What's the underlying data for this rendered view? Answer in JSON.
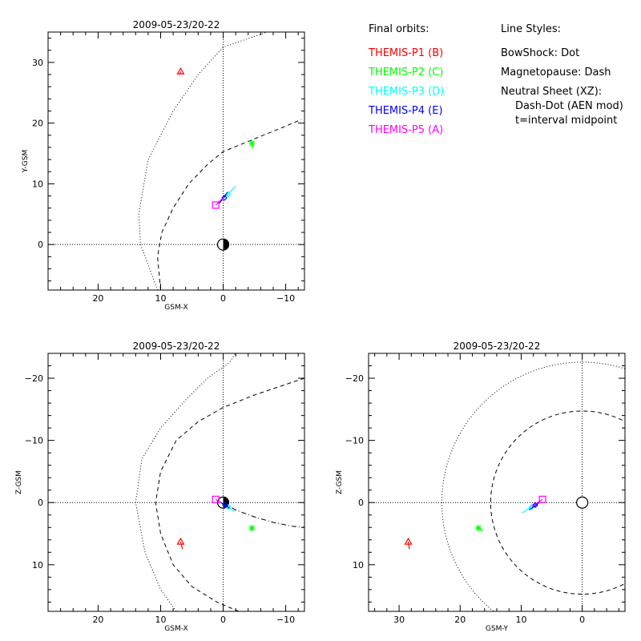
{
  "colors": {
    "P1": "#ff0000",
    "P2": "#00ff00",
    "P3": "#00ffff",
    "P4": "#0000ff",
    "P5": "#ff00ff"
  },
  "legend": {
    "orbits_title": "Final orbits:",
    "styles_title": "Line Styles:",
    "probes": [
      {
        "label": "THEMIS-P1 (B)",
        "color_key": "P1"
      },
      {
        "label": "THEMIS-P2 (C)",
        "color_key": "P2"
      },
      {
        "label": "THEMIS-P3 (D)",
        "color_key": "P3"
      },
      {
        "label": "THEMIS-P4 (E)",
        "color_key": "P4"
      },
      {
        "label": "THEMIS-P5 (A)",
        "color_key": "P5"
      }
    ],
    "styles": [
      "BowShock: Dot",
      "Magnetopause: Dash",
      "Neutral Sheet (XZ):",
      "Dash-Dot (AEN mod)",
      "t=interval midpoint"
    ]
  },
  "chart_data": [
    {
      "type": "scatter",
      "title": "2009-05-23/20-22",
      "xlabel": "GSM-X",
      "ylabel": "Y-GSM",
      "xlim": [
        28,
        -13
      ],
      "ylim": [
        35,
        -7.5
      ],
      "xticks": [
        20,
        10,
        0,
        -10
      ],
      "yticks": [
        0,
        10,
        20,
        30
      ],
      "grid": "dotted lines at zero",
      "bowshock": [
        [
          10.5,
          -7.5
        ],
        [
          13.2,
          0
        ],
        [
          13.5,
          5
        ],
        [
          12,
          14
        ],
        [
          8,
          22
        ],
        [
          4,
          28
        ],
        [
          0,
          32.5
        ],
        [
          -7,
          35
        ]
      ],
      "magnetopause": [
        [
          10,
          -7.5
        ],
        [
          10.5,
          -2
        ],
        [
          9.8,
          2
        ],
        [
          8,
          6
        ],
        [
          5.5,
          10
        ],
        [
          2.5,
          13.2
        ],
        [
          0,
          15.3
        ],
        [
          -5,
          17.4
        ],
        [
          -10,
          19.5
        ],
        [
          -12.5,
          20.6
        ]
      ],
      "probes": [
        {
          "name": "THEMIS-P1 (B)",
          "color_key": "P1",
          "symbol": "triangle",
          "x": 6.8,
          "y": 28.5,
          "track": [
            [
              6.8,
              28.5
            ],
            [
              6.9,
              28.1
            ]
          ]
        },
        {
          "name": "THEMIS-P2 (C)",
          "color_key": "P2",
          "symbol": "asterisk",
          "x": -4.6,
          "y": 16.7,
          "track": [
            [
              -4.6,
              16.7
            ],
            [
              -4.8,
              15.8
            ]
          ]
        },
        {
          "name": "THEMIS-P3 (D)",
          "color_key": "P3",
          "symbol": "diamond",
          "x": -0.8,
          "y": 8.3,
          "track": [
            [
              -0.2,
              7.7
            ],
            [
              -2,
              9.6
            ]
          ]
        },
        {
          "name": "THEMIS-P4 (E)",
          "color_key": "P4",
          "symbol": "diamond",
          "x": -0.2,
          "y": 7.7,
          "track": [
            [
              0.6,
              6.8
            ],
            [
              -0.7,
              8.6
            ]
          ]
        },
        {
          "name": "THEMIS-P5 (A)",
          "color_key": "P5",
          "symbol": "square",
          "x": 1.2,
          "y": 6.5,
          "track": [
            [
              1.2,
              6.5
            ],
            [
              -0.1,
              7.8
            ]
          ]
        }
      ]
    },
    {
      "type": "scatter",
      "title": "2009-05-23/20-22",
      "xlabel": "GSM-X",
      "ylabel": "Z-GSM",
      "xlim": [
        28,
        -13
      ],
      "ylim": [
        -24,
        17.5
      ],
      "xticks": [
        20,
        10,
        0,
        -10
      ],
      "yticks": [
        10,
        0,
        -10,
        -20
      ],
      "grid": "dotted lines at zero",
      "bowshock": [
        [
          7.5,
          17.5
        ],
        [
          10,
          14
        ],
        [
          12.5,
          8
        ],
        [
          14,
          0
        ],
        [
          13,
          -7
        ],
        [
          10,
          -12
        ],
        [
          6,
          -16.5
        ],
        [
          2.5,
          -20
        ],
        [
          -1,
          -22.5
        ],
        [
          -2,
          -24
        ]
      ],
      "magnetopause": [
        [
          -2.5,
          17.5
        ],
        [
          1,
          16
        ],
        [
          5,
          13.5
        ],
        [
          8,
          10
        ],
        [
          10,
          5
        ],
        [
          10.8,
          0
        ],
        [
          10,
          -5
        ],
        [
          7.5,
          -10
        ],
        [
          4,
          -13
        ],
        [
          0,
          -15.3
        ],
        [
          -5,
          -17.3
        ],
        [
          -10,
          -19
        ],
        [
          -13,
          -20
        ]
      ],
      "neutral_sheet": [
        [
          0,
          0
        ],
        [
          -2,
          1.2
        ],
        [
          -5,
          2.3
        ],
        [
          -8,
          3.2
        ],
        [
          -11,
          3.8
        ],
        [
          -13,
          4
        ]
      ],
      "probes": [
        {
          "name": "THEMIS-P1 (B)",
          "color_key": "P1",
          "symbol": "triangle",
          "x": 6.8,
          "y": 6.3,
          "track": [
            [
              6.8,
              6.3
            ],
            [
              6.5,
              7.5
            ]
          ]
        },
        {
          "name": "THEMIS-P2 (C)",
          "color_key": "P2",
          "symbol": "asterisk",
          "x": -4.6,
          "y": 4.1,
          "track": [
            [
              -4.6,
              4.1
            ],
            [
              -4.5,
              4.5
            ]
          ]
        },
        {
          "name": "THEMIS-P3 (D)",
          "color_key": "P3",
          "symbol": "diamond",
          "x": -0.8,
          "y": 0.7,
          "track": [
            [
              0.3,
              0.1
            ],
            [
              -1.8,
              1.4
            ]
          ]
        },
        {
          "name": "THEMIS-P4 (E)",
          "color_key": "P4",
          "symbol": "diamond",
          "x": -0.3,
          "y": 0.4,
          "track": [
            [
              0.5,
              -0.1
            ],
            [
              -1,
              0.9
            ]
          ]
        },
        {
          "name": "THEMIS-P5 (A)",
          "color_key": "P5",
          "symbol": "square",
          "x": 1.2,
          "y": -0.5,
          "track": [
            [
              1.2,
              -0.5
            ],
            [
              0.4,
              0
            ]
          ]
        }
      ]
    },
    {
      "type": "scatter",
      "title": "2009-05-23/20-22",
      "xlabel": "GSM-Y",
      "ylabel": "Z-GSM",
      "xlim": [
        35,
        -7
      ],
      "ylim": [
        -24,
        17.5
      ],
      "xticks": [
        30,
        20,
        10,
        0
      ],
      "yticks": [
        10,
        0,
        -10,
        -20
      ],
      "grid": "dotted lines at zero",
      "bowshock": {
        "center": [
          0,
          0
        ],
        "radius": 23
      },
      "magnetopause": {
        "center": [
          0,
          0
        ],
        "radius": 15
      },
      "probes": [
        {
          "name": "THEMIS-P1 (B)",
          "color_key": "P1",
          "symbol": "triangle",
          "x": 28.5,
          "y": 6.3,
          "track": [
            [
              28.5,
              6.3
            ],
            [
              28.3,
              7.5
            ]
          ]
        },
        {
          "name": "THEMIS-P2 (C)",
          "color_key": "P2",
          "symbol": "asterisk",
          "x": 17,
          "y": 4.1,
          "track": [
            [
              17,
              4.1
            ],
            [
              16.2,
              4.6
            ]
          ]
        },
        {
          "name": "THEMIS-P3 (D)",
          "color_key": "P3",
          "symbol": "diamond",
          "x": 8.3,
          "y": 0.7,
          "track": [
            [
              7.6,
              0.1
            ],
            [
              9.8,
              1.7
            ]
          ]
        },
        {
          "name": "THEMIS-P4 (E)",
          "color_key": "P4",
          "symbol": "diamond",
          "x": 7.7,
          "y": 0.4,
          "track": [
            [
              6.9,
              -0.1
            ],
            [
              8.7,
              1.2
            ]
          ]
        },
        {
          "name": "THEMIS-P5 (A)",
          "color_key": "P5",
          "symbol": "square",
          "x": 6.5,
          "y": -0.5,
          "track": [
            [
              6.5,
              -0.5
            ],
            [
              8.2,
              0.6
            ]
          ]
        }
      ]
    }
  ]
}
